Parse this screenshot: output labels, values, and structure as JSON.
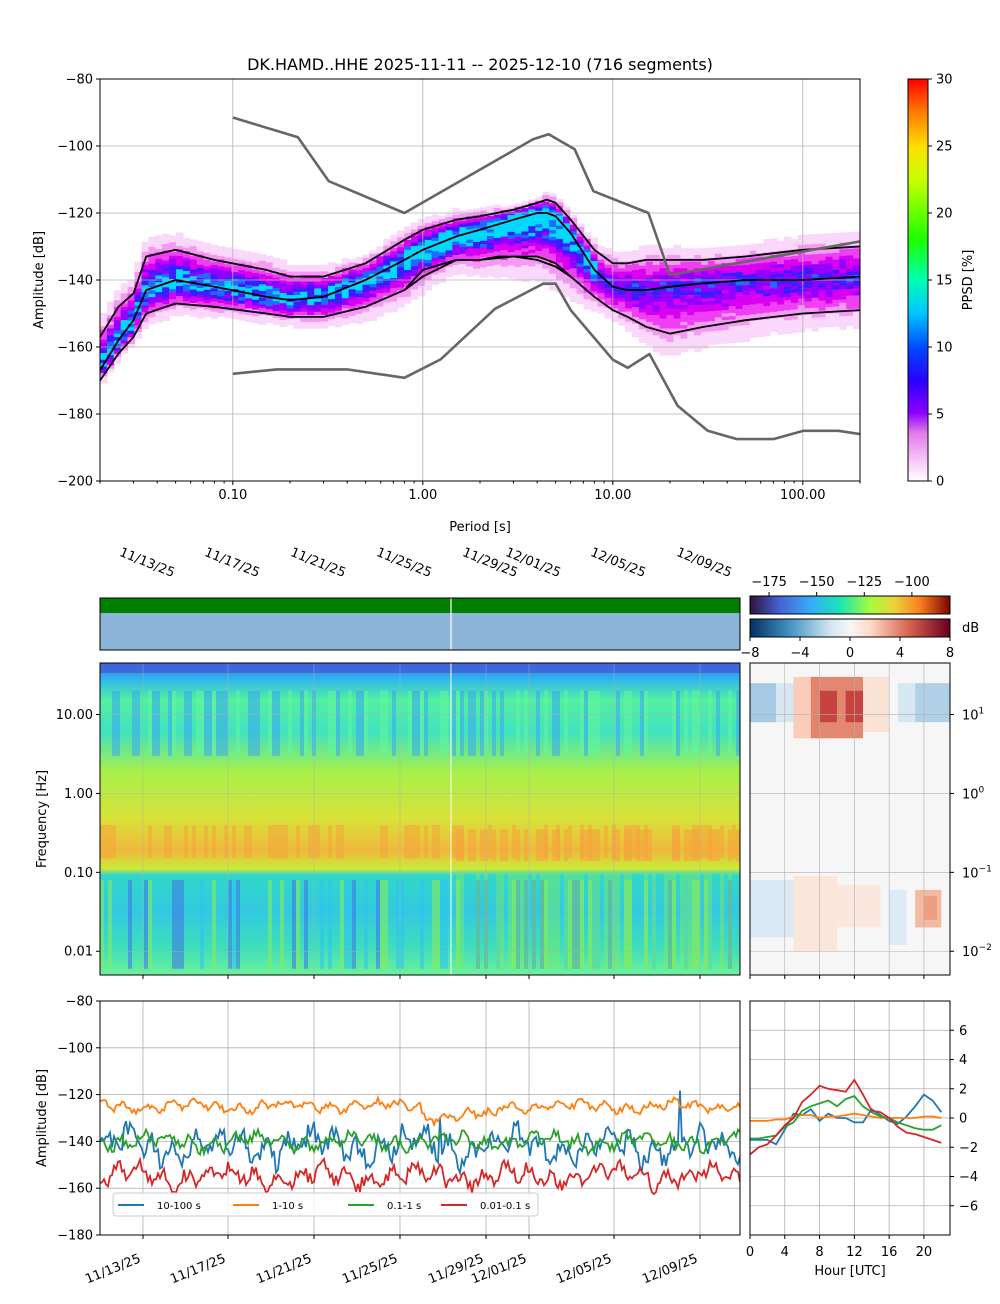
{
  "page_title": "DK.HAMD..HHE   2025-11-11 -- 2025-12-10  (716 segments)",
  "chart_data": [
    {
      "id": "ppsd",
      "type": "heatmap",
      "title": "DK.HAMD..HHE   2025-11-11 -- 2025-12-10  (716 segments)",
      "xlabel": "Period [s]",
      "ylabel": "Amplitude [dB]",
      "xscale": "log",
      "xlim": [
        0.02,
        200
      ],
      "ylim": [
        -200,
        -80
      ],
      "xticks": [
        "0.10",
        "1.00",
        "10.00",
        "100.00"
      ],
      "yticks": [
        -200,
        -180,
        -160,
        -140,
        -120,
        -100,
        -80
      ],
      "colorbar": {
        "label": "PPSD [%]",
        "range": [
          0,
          30
        ],
        "ticks": [
          0,
          5,
          10,
          15,
          20,
          25,
          30
        ]
      },
      "grid": true,
      "series": [
        {
          "role": "mode",
          "color": "#000000",
          "x": [
            0.02,
            0.025,
            0.03,
            0.035,
            0.05,
            0.08,
            0.15,
            0.2,
            0.3,
            0.5,
            0.8,
            1.0,
            1.5,
            2,
            3,
            4,
            4.5,
            5,
            6,
            8,
            10,
            12,
            15,
            20,
            30,
            50,
            100,
            200
          ],
          "y": [
            -167,
            -158,
            -152,
            -143,
            -140,
            -142,
            -145,
            -146,
            -145,
            -140,
            -134,
            -131,
            -127,
            -125,
            -122,
            -120,
            -120,
            -121,
            -126,
            -137,
            -142,
            -143,
            -143,
            -142,
            -141,
            -140,
            -140,
            -139
          ]
        },
        {
          "role": "percentile-high",
          "color": "#000000",
          "x": [
            0.02,
            0.025,
            0.03,
            0.035,
            0.05,
            0.08,
            0.15,
            0.2,
            0.3,
            0.5,
            0.8,
            1.0,
            1.5,
            2,
            3,
            4,
            4.5,
            5,
            6,
            8,
            10,
            12,
            15,
            20,
            30,
            50,
            100,
            200
          ],
          "y": [
            -157,
            -148,
            -144,
            -133,
            -131,
            -134,
            -137,
            -139,
            -139,
            -135,
            -128,
            -125,
            -122,
            -121,
            -119,
            -117,
            -116,
            -117,
            -122,
            -131,
            -135,
            -135,
            -134,
            -134,
            -134,
            -133,
            -131,
            -130
          ]
        },
        {
          "role": "percentile-low",
          "color": "#000000",
          "x": [
            0.02,
            0.025,
            0.03,
            0.035,
            0.05,
            0.08,
            0.15,
            0.2,
            0.3,
            0.5,
            0.8,
            1.0,
            1.5,
            2,
            3,
            4,
            4.5,
            5,
            6,
            8,
            10,
            12,
            15,
            20,
            30,
            50,
            100,
            200
          ],
          "y": [
            -170,
            -162,
            -157,
            -150,
            -147,
            -148,
            -150,
            -151,
            -151,
            -148,
            -143,
            -139,
            -134,
            -134,
            -133,
            -133,
            -134,
            -135,
            -139,
            -145,
            -149,
            -151,
            -154,
            -156,
            -154,
            -152,
            -150,
            -149
          ]
        },
        {
          "role": "mean",
          "color": "#000000",
          "x": [
            0.8,
            1,
            1.5,
            2,
            2.5,
            3,
            4,
            5,
            6
          ],
          "y": [
            -143,
            -137,
            -134,
            -134,
            -133,
            -133,
            -134,
            -136,
            -139
          ]
        },
        {
          "role": "new-high-noise-model",
          "color": "#666666",
          "x": [
            0.1,
            0.22,
            0.32,
            0.8,
            3.8,
            4.6,
            6.3,
            7.9,
            15.4,
            20,
            354.8
          ],
          "y": [
            -91.5,
            -97.4,
            -110.5,
            -120,
            -98,
            -96.5,
            -101,
            -113.5,
            -120,
            -138.5,
            -126
          ]
        },
        {
          "role": "new-low-noise-model",
          "color": "#666666",
          "x": [
            0.1,
            0.17,
            0.4,
            0.8,
            1.24,
            2.4,
            4.3,
            5,
            6,
            10,
            12,
            15.6,
            21.9,
            31.6,
            45,
            70,
            101,
            154,
            200
          ],
          "y": [
            -168,
            -166.7,
            -166.7,
            -169.2,
            -163.7,
            -148.6,
            -141.1,
            -141.1,
            -149,
            -163.8,
            -166.2,
            -162.1,
            -177.5,
            -185,
            -187.5,
            -187.5,
            -185,
            -185,
            -186
          ]
        }
      ]
    },
    {
      "id": "spectrogram",
      "type": "heatmap",
      "ylabel": "Frequency [Hz]",
      "yscale": "log",
      "yticks": [
        "0.01",
        "0.10",
        "1.00",
        "10.00"
      ],
      "x_date_ticks": [
        "11/13/25",
        "11/17/25",
        "11/21/25",
        "11/25/25",
        "11/29/25",
        "12/01/25",
        "12/05/25",
        "12/09/25"
      ],
      "colorbar_ticks": [
        -175,
        -150,
        -125,
        -100
      ],
      "grid": true
    },
    {
      "id": "diurnal-spectrogram",
      "type": "heatmap",
      "yscale": "log",
      "yticks": [
        "10^-2",
        "10^-1",
        "10^0",
        "10^1"
      ],
      "colorbar_label": "dB",
      "colorbar_ticks": [
        -8,
        -4,
        0,
        4,
        8
      ]
    },
    {
      "id": "band-timeseries",
      "type": "line",
      "ylabel": "Amplitude [dB]",
      "ylim": [
        -180,
        -80
      ],
      "yticks": [
        -180,
        -160,
        -140,
        -120,
        -100,
        -80
      ],
      "x_date_ticks": [
        "11/13/25",
        "11/17/25",
        "11/21/25",
        "11/25/25",
        "11/29/25",
        "12/01/25",
        "12/05/25",
        "12/09/25"
      ],
      "legend_position": "lower-left",
      "grid": true,
      "series": [
        {
          "name": "10-100 s",
          "color": "#1f77b4",
          "mean": -142,
          "spread": 6
        },
        {
          "name": "1-10 s",
          "color": "#ff7f0e",
          "mean": -125,
          "spread": 2
        },
        {
          "name": "0.1-1 s",
          "color": "#2ca02c",
          "mean": -140,
          "spread": 3
        },
        {
          "name": "0.01-0.1 s",
          "color": "#d62728",
          "mean": -155,
          "spread": 4
        }
      ]
    },
    {
      "id": "diurnal-bands",
      "type": "line",
      "xlabel": "Hour [UTC]",
      "xlim": [
        0,
        23
      ],
      "xticks": [
        0,
        4,
        8,
        12,
        16,
        20
      ],
      "ylim": [
        -8,
        8
      ],
      "yticks": [
        -6,
        -4,
        -2,
        0,
        2,
        4,
        6
      ],
      "grid": true,
      "x": [
        0,
        1,
        2,
        3,
        4,
        5,
        6,
        7,
        8,
        9,
        10,
        11,
        12,
        13,
        14,
        15,
        16,
        17,
        18,
        19,
        20,
        21,
        22
      ],
      "series": [
        {
          "color": "#1f77b4",
          "y": [
            -1.5,
            -1.5,
            -1.5,
            -1.8,
            -0.8,
            0.3,
            0.2,
            0.6,
            -0.2,
            0.3,
            0.0,
            0.0,
            -0.3,
            -0.3,
            0.6,
            0.2,
            -0.2,
            -0.4,
            0.1,
            0.8,
            1.6,
            1.2,
            0.4
          ]
        },
        {
          "color": "#ff7f0e",
          "y": [
            -0.2,
            -0.2,
            -0.2,
            -0.1,
            -0.1,
            0.1,
            0.2,
            0.2,
            0.0,
            0.1,
            0.1,
            0.2,
            0.3,
            0.2,
            0.1,
            0.0,
            0.0,
            0.0,
            0.0,
            0.0,
            0.1,
            0.1,
            0.0
          ]
        },
        {
          "color": "#2ca02c",
          "y": [
            -1.4,
            -1.4,
            -1.3,
            -1.2,
            -0.6,
            -0.3,
            0.5,
            0.8,
            1.0,
            1.2,
            0.8,
            1.3,
            1.5,
            0.8,
            0.4,
            0.1,
            0.0,
            -0.3,
            -0.5,
            -0.7,
            -0.8,
            -0.8,
            -0.5
          ]
        },
        {
          "color": "#d62728",
          "y": [
            -2.5,
            -2.0,
            -1.8,
            -1.2,
            -0.5,
            0.0,
            1.1,
            1.6,
            2.2,
            2.0,
            1.9,
            1.8,
            2.6,
            1.6,
            0.5,
            0.4,
            0.0,
            -0.6,
            -1.0,
            -1.1,
            -1.3,
            -1.5,
            -1.7
          ]
        }
      ]
    }
  ]
}
